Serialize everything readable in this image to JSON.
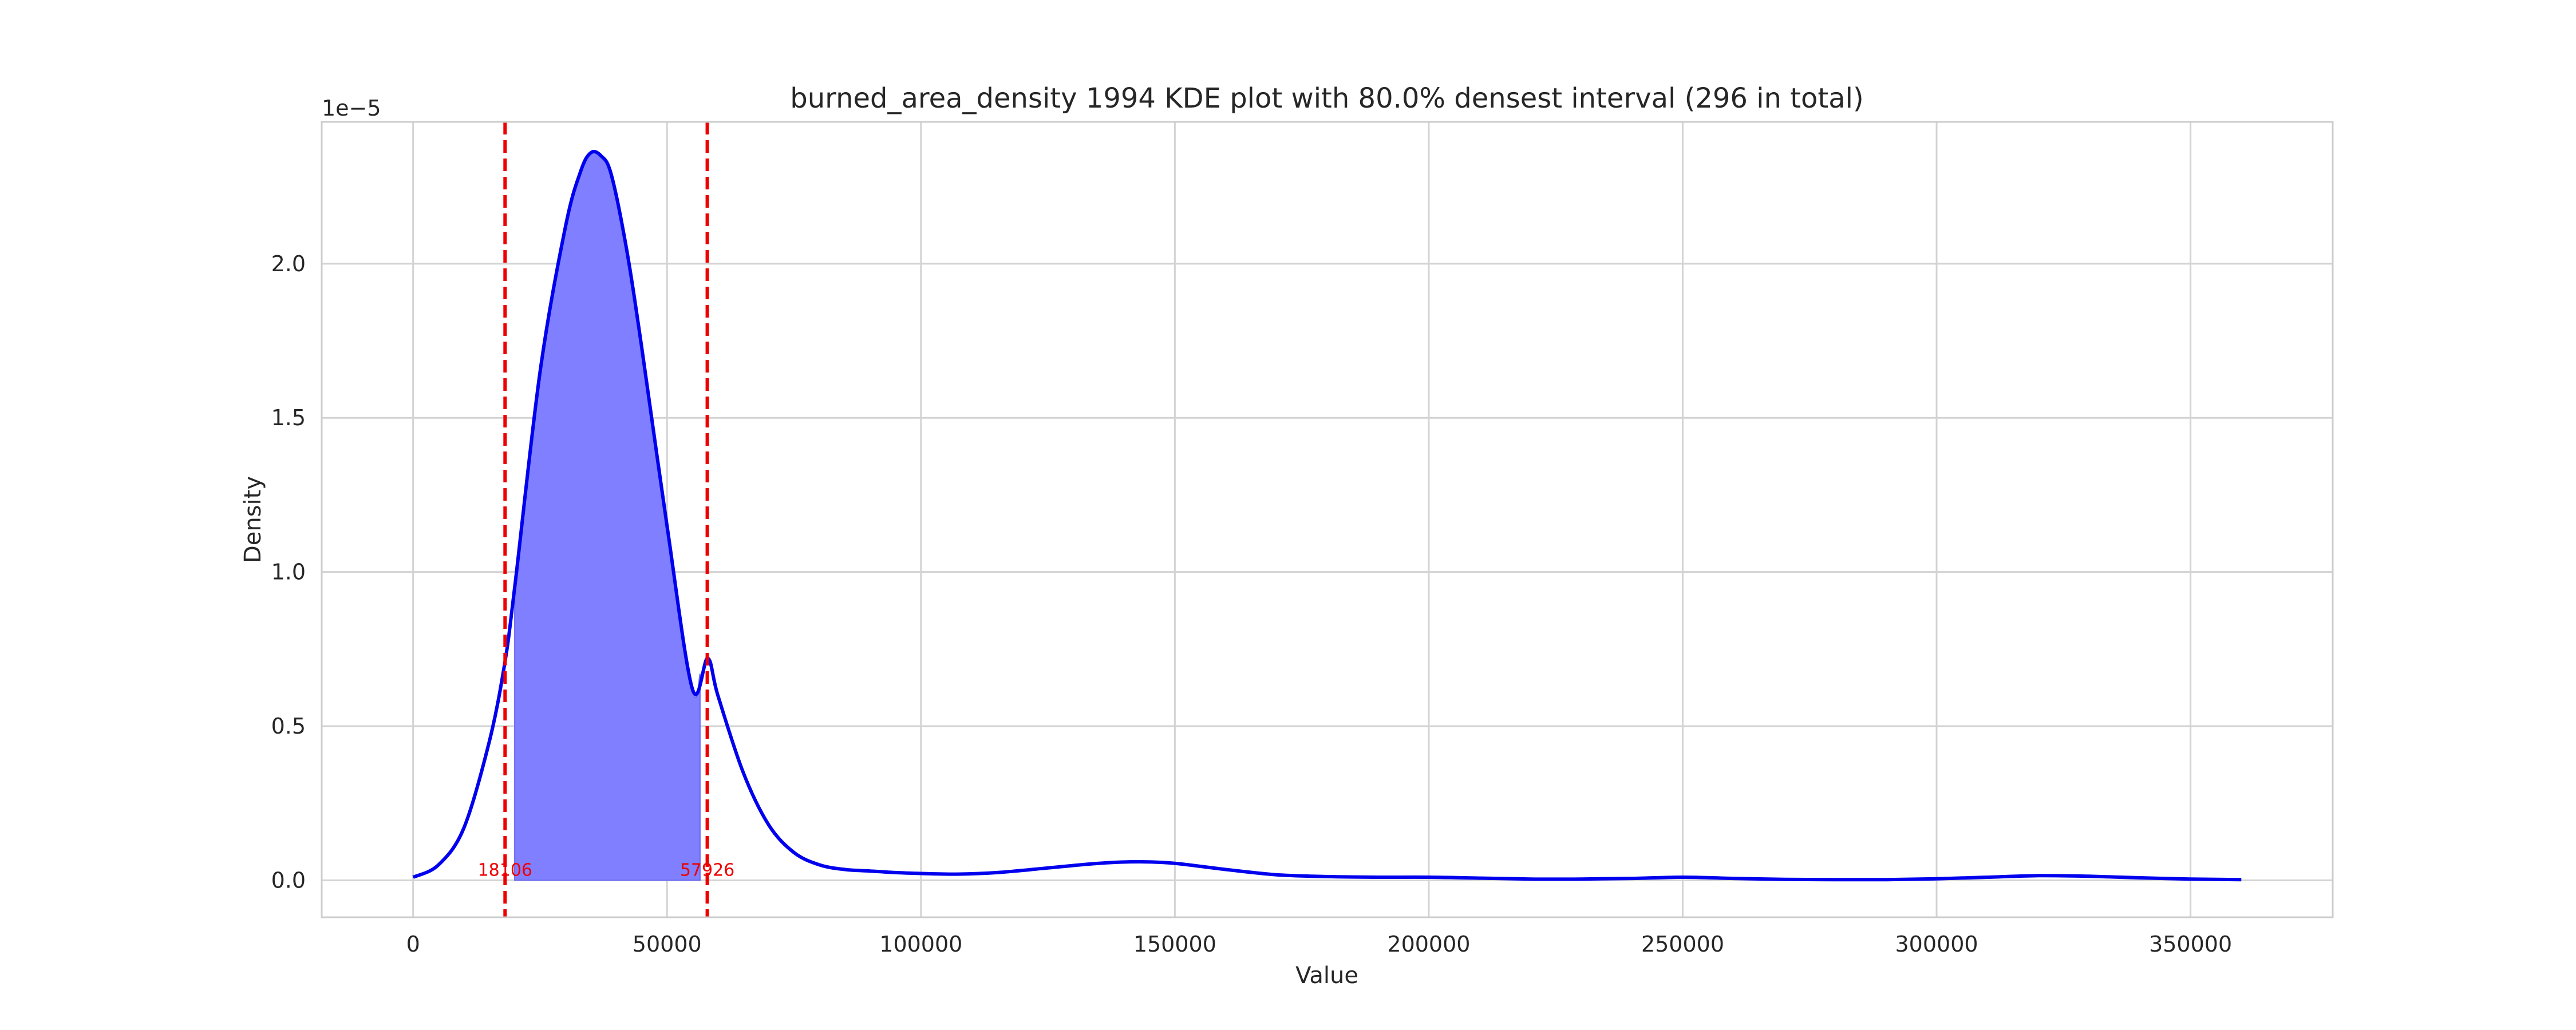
{
  "chart_data": {
    "type": "area",
    "title": "burned_area_density 1994 KDE plot with 80.0% densest interval (296 in total)",
    "xlabel": "Value",
    "ylabel": "Density",
    "y_offset_label": "1e−5",
    "xlim": [
      -18000,
      378000
    ],
    "ylim": [
      -0.12,
      2.46
    ],
    "y_scale": 1e-05,
    "grid": true,
    "xticks": [
      0,
      50000,
      100000,
      150000,
      200000,
      250000,
      300000,
      350000
    ],
    "xtick_labels": [
      "0",
      "50000",
      "100000",
      "150000",
      "200000",
      "250000",
      "300000",
      "350000"
    ],
    "yticks": [
      0.0,
      0.5,
      1.0,
      1.5,
      2.0
    ],
    "ytick_labels": [
      "0.0",
      "0.5",
      "1.0",
      "1.5",
      "2.0"
    ],
    "series": [
      {
        "name": "KDE",
        "color": "#0000ee",
        "x": [
          0,
          5000,
          10000,
          15000,
          18000,
          20000,
          25000,
          30000,
          33000,
          35000,
          37000,
          39000,
          42000,
          45000,
          50000,
          55000,
          58000,
          60000,
          65000,
          70000,
          75000,
          80000,
          85000,
          90000,
          95000,
          100000,
          107000,
          115000,
          125000,
          135000,
          143000,
          150000,
          160000,
          170000,
          180000,
          190000,
          200000,
          210000,
          220000,
          230000,
          240000,
          250000,
          260000,
          270000,
          280000,
          290000,
          300000,
          310000,
          320000,
          330000,
          340000,
          350000,
          360000
        ],
        "y": [
          0.01,
          0.05,
          0.17,
          0.45,
          0.7,
          0.95,
          1.65,
          2.12,
          2.3,
          2.36,
          2.35,
          2.29,
          2.05,
          1.73,
          1.15,
          0.62,
          0.72,
          0.6,
          0.35,
          0.18,
          0.09,
          0.05,
          0.035,
          0.03,
          0.025,
          0.022,
          0.02,
          0.025,
          0.04,
          0.055,
          0.06,
          0.055,
          0.035,
          0.018,
          0.012,
          0.01,
          0.01,
          0.007,
          0.004,
          0.004,
          0.006,
          0.01,
          0.006,
          0.003,
          0.002,
          0.002,
          0.005,
          0.01,
          0.015,
          0.013,
          0.008,
          0.004,
          0.002
        ]
      }
    ],
    "interval": {
      "lower": 18106,
      "upper": 57926,
      "lower_label": "18106",
      "upper_label": "57926",
      "line_color": "#ee0000",
      "fill_color": "#7f7fff",
      "fill_x_start": 20000,
      "fill_x_end": 56500
    }
  }
}
